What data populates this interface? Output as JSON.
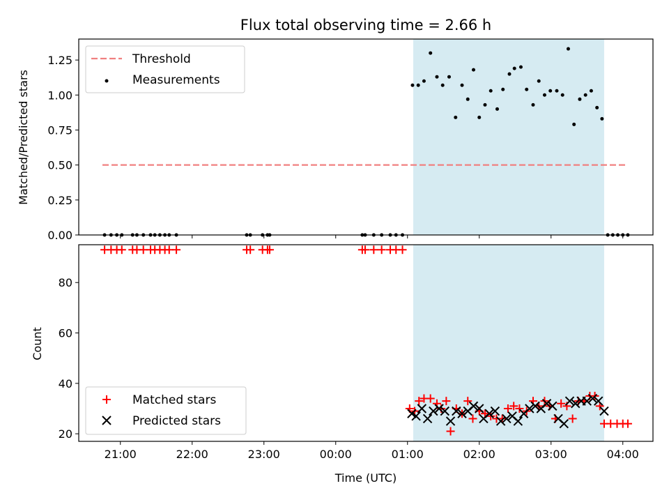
{
  "chart_data": {
    "type": "scatter",
    "title": "Flux total observing time = 2.66 h",
    "colors": {
      "threshold": "#f08080",
      "measurement": "#000000",
      "matched": "#ff0000",
      "predicted": "#000000",
      "span": "#add8e6"
    },
    "x_axis": {
      "label": "Time (UTC)",
      "range_hours": [
        -3.58,
        4.42
      ],
      "tick_hours": [
        -3,
        -2,
        -1,
        0,
        1,
        2,
        3,
        4
      ],
      "tick_labels": [
        "21:00",
        "22:00",
        "23:00",
        "00:00",
        "01:00",
        "02:00",
        "03:00",
        "04:00"
      ]
    },
    "observing_window_hours": [
      1.08,
      3.74
    ],
    "panels": [
      {
        "ylabel": "Matched/Predicted stars",
        "ylim": [
          0,
          1.4
        ],
        "yticks": [
          0,
          0.25,
          0.5,
          0.75,
          1.0,
          1.25
        ],
        "ytick_labels": [
          "0.00",
          "0.25",
          "0.50",
          "0.75",
          "1.00",
          "1.25"
        ],
        "legend": {
          "placement": "upper-left",
          "entries": [
            "Threshold",
            "Measurements"
          ]
        },
        "threshold": {
          "name": "Threshold",
          "value": 0.5,
          "x_range_hours": [
            -3.25,
            4.05
          ]
        },
        "series": [
          {
            "name": "Measurements",
            "x_hours": [
              -3.22,
              -3.13,
              -3.05,
              -2.98,
              -2.83,
              -2.77,
              -2.68,
              -2.58,
              -2.52,
              -2.45,
              -2.38,
              -2.32,
              -2.22,
              -1.24,
              -1.19,
              -1.02,
              -0.95,
              -0.92,
              0.37,
              0.41,
              0.53,
              0.64,
              0.76,
              0.84,
              0.93,
              1.07,
              1.15,
              1.23,
              1.32,
              1.41,
              1.49,
              1.58,
              1.67,
              1.76,
              1.84,
              1.92,
              2.0,
              2.08,
              2.16,
              2.25,
              2.33,
              2.42,
              2.49,
              2.58,
              2.66,
              2.75,
              2.83,
              2.91,
              2.99,
              3.08,
              3.16,
              3.24,
              3.32,
              3.4,
              3.48,
              3.56,
              3.64,
              3.71,
              3.79,
              3.86,
              3.93,
              4.0,
              4.07
            ],
            "y": [
              0,
              0,
              0,
              0,
              0,
              0,
              0,
              0,
              0,
              0,
              0,
              0,
              0,
              0,
              0,
              0,
              0,
              0,
              0,
              0,
              0,
              0,
              0,
              0,
              0,
              1.07,
              1.07,
              1.1,
              1.3,
              1.13,
              1.07,
              1.13,
              0.84,
              1.07,
              0.97,
              1.18,
              0.84,
              0.93,
              1.03,
              0.9,
              1.04,
              1.15,
              1.19,
              1.2,
              1.04,
              0.93,
              1.1,
              1.0,
              1.03,
              1.03,
              1.0,
              1.33,
              0.79,
              0.97,
              1.0,
              1.03,
              0.91,
              0.83,
              0,
              0,
              0,
              0,
              0
            ]
          }
        ]
      },
      {
        "ylabel": "Count",
        "ylim": [
          17,
          95
        ],
        "yticks": [
          20,
          40,
          60,
          80
        ],
        "ytick_labels": [
          "20",
          "40",
          "60",
          "80"
        ],
        "legend": {
          "placement": "lower-left",
          "entries": [
            "Matched stars",
            "Predicted stars"
          ]
        },
        "series": [
          {
            "name": "Matched stars",
            "marker": "plus",
            "x_hours": [
              -3.22,
              -3.13,
              -3.05,
              -2.98,
              -2.83,
              -2.77,
              -2.68,
              -2.58,
              -2.52,
              -2.45,
              -2.38,
              -2.32,
              -2.22,
              -1.24,
              -1.19,
              -1.02,
              -0.95,
              -0.92,
              0.37,
              0.41,
              0.53,
              0.64,
              0.76,
              0.84,
              0.93,
              1.03,
              1.1,
              1.16,
              1.23,
              1.32,
              1.41,
              1.47,
              1.54,
              1.6,
              1.68,
              1.76,
              1.84,
              1.91,
              2.0,
              2.08,
              2.16,
              2.24,
              2.32,
              2.4,
              2.48,
              2.56,
              2.66,
              2.75,
              2.83,
              2.91,
              2.98,
              3.06,
              3.14,
              3.22,
              3.3,
              3.38,
              3.46,
              3.54,
              3.61,
              3.68,
              3.74,
              3.83,
              3.92,
              4.0,
              4.07
            ],
            "y": [
              93,
              93,
              93,
              93,
              93,
              93,
              93,
              93,
              93,
              93,
              93,
              93,
              93,
              93,
              93,
              93,
              93,
              93,
              93,
              93,
              93,
              93,
              93,
              93,
              93,
              30,
              29,
              33,
              34,
              34,
              32,
              30,
              33,
              21,
              30,
              28,
              33,
              26,
              29,
              28,
              27,
              26,
              26,
              30,
              31,
              30,
              29,
              33,
              31,
              33,
              31,
              26,
              32,
              31,
              26,
              33,
              33,
              35,
              35,
              31,
              24,
              24,
              24,
              24,
              24
            ],
            "note_marker": "+"
          },
          {
            "name": "Predicted stars",
            "marker": "x",
            "x_hours": [
              1.06,
              1.12,
              1.2,
              1.28,
              1.36,
              1.44,
              1.52,
              1.6,
              1.68,
              1.76,
              1.84,
              1.92,
              2.0,
              2.06,
              2.14,
              2.22,
              2.3,
              2.38,
              2.46,
              2.54,
              2.62,
              2.7,
              2.78,
              2.86,
              2.94,
              3.02,
              3.1,
              3.18,
              3.26,
              3.34,
              3.42,
              3.5,
              3.58,
              3.66,
              3.74
            ],
            "y": [
              28,
              27,
              30,
              26,
              29,
              30,
              29,
              25,
              29,
              28,
              29,
              31,
              30,
              26,
              28,
              29,
              25,
              26,
              27,
              25,
              28,
              30,
              31,
              30,
              32,
              31,
              26,
              24,
              33,
              32,
              33,
              33,
              34,
              33,
              29
            ]
          }
        ]
      }
    ]
  }
}
